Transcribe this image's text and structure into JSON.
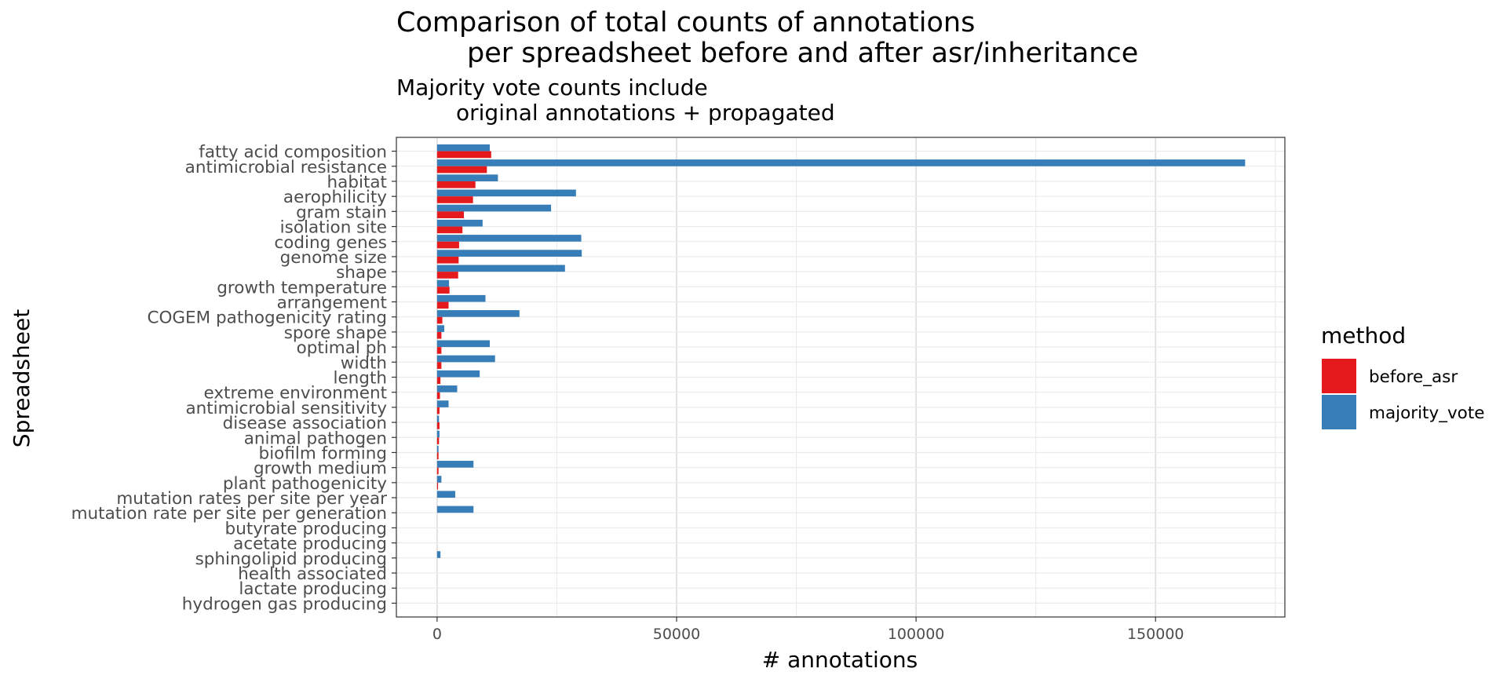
{
  "chart_data": {
    "type": "bar",
    "orientation": "horizontal",
    "title_line1": "Comparison of total counts of annotations",
    "title_line2": "per spreadsheet before and after asr/inheritance",
    "subtitle_line1": "Majority vote counts include",
    "subtitle_line2": "original annotations + propagated",
    "xlabel": "# annotations",
    "ylabel": "Spreadsheet",
    "xlim": [
      -8500,
      177000
    ],
    "xticks": [
      0,
      50000,
      100000,
      150000
    ],
    "xtick_labels": [
      "0",
      "50000",
      "100000",
      "150000"
    ],
    "grid": true,
    "legend": {
      "title": "method",
      "position": "right",
      "entries": [
        {
          "label": "before_asr",
          "color": "#E41A1C"
        },
        {
          "label": "majority_vote",
          "color": "#377EB8"
        }
      ]
    },
    "categories": [
      "fatty acid composition",
      "antimicrobial resistance",
      "habitat",
      "aerophilicity",
      "gram stain",
      "isolation site",
      "coding genes",
      "genome size",
      "shape",
      "growth temperature",
      "arrangement",
      "COGEM pathogenicity rating",
      "spore shape",
      "optimal ph",
      "width",
      "length",
      "extreme environment",
      "antimicrobial sensitivity",
      "disease association",
      "animal pathogen",
      "biofilm forming",
      "growth medium",
      "plant pathogenicity",
      "mutation rates per site per year",
      "mutation rate per site per generation",
      "butyrate producing",
      "acetate producing",
      "sphingolipid producing",
      "health associated",
      "lactate producing",
      "hydrogen gas producing"
    ],
    "series": [
      {
        "name": "before_asr",
        "color": "#E41A1C",
        "values": [
          11300,
          10400,
          8000,
          7500,
          5600,
          5300,
          4600,
          4500,
          4400,
          2600,
          2400,
          1100,
          900,
          900,
          900,
          700,
          600,
          500,
          500,
          400,
          300,
          300,
          200,
          0,
          0,
          0,
          0,
          0,
          0,
          0,
          0
        ]
      },
      {
        "name": "majority_vote",
        "color": "#377EB8",
        "values": [
          11000,
          168700,
          12700,
          29000,
          23800,
          9500,
          30100,
          30200,
          26700,
          2500,
          10100,
          17200,
          1500,
          11000,
          12100,
          8900,
          4200,
          2400,
          400,
          500,
          300,
          7600,
          900,
          3800,
          7600,
          0,
          0,
          700,
          0,
          0,
          0
        ]
      }
    ]
  }
}
